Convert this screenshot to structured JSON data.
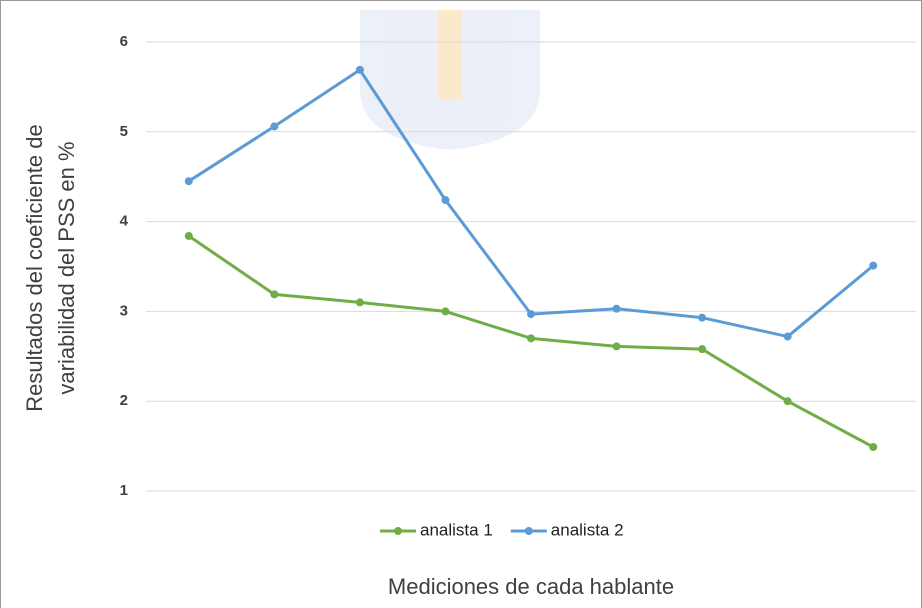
{
  "chart_data": {
    "type": "line",
    "ylabel": [
      "Resultados del coeficiente de",
      "variabilidad del PSS en %"
    ],
    "xlabel": "Mediciones de cada hablante",
    "categories": [
      null,
      null,
      null,
      null,
      null,
      null,
      null,
      null,
      null
    ],
    "series": [
      {
        "name": "analista 1",
        "color": "#70ad47",
        "values": [
          3.84,
          3.19,
          3.1,
          3.0,
          2.7,
          2.61,
          2.58,
          2.0,
          1.49
        ]
      },
      {
        "name": "analista 2",
        "color": "#5b9bd5",
        "values": [
          4.45,
          5.06,
          5.69,
          4.24,
          2.97,
          3.03,
          2.93,
          2.72,
          3.51
        ]
      }
    ],
    "ylim": [
      1,
      6
    ],
    "yticks": [
      1,
      2,
      3,
      4,
      5,
      6
    ],
    "grid": true,
    "legend": "bottom"
  }
}
